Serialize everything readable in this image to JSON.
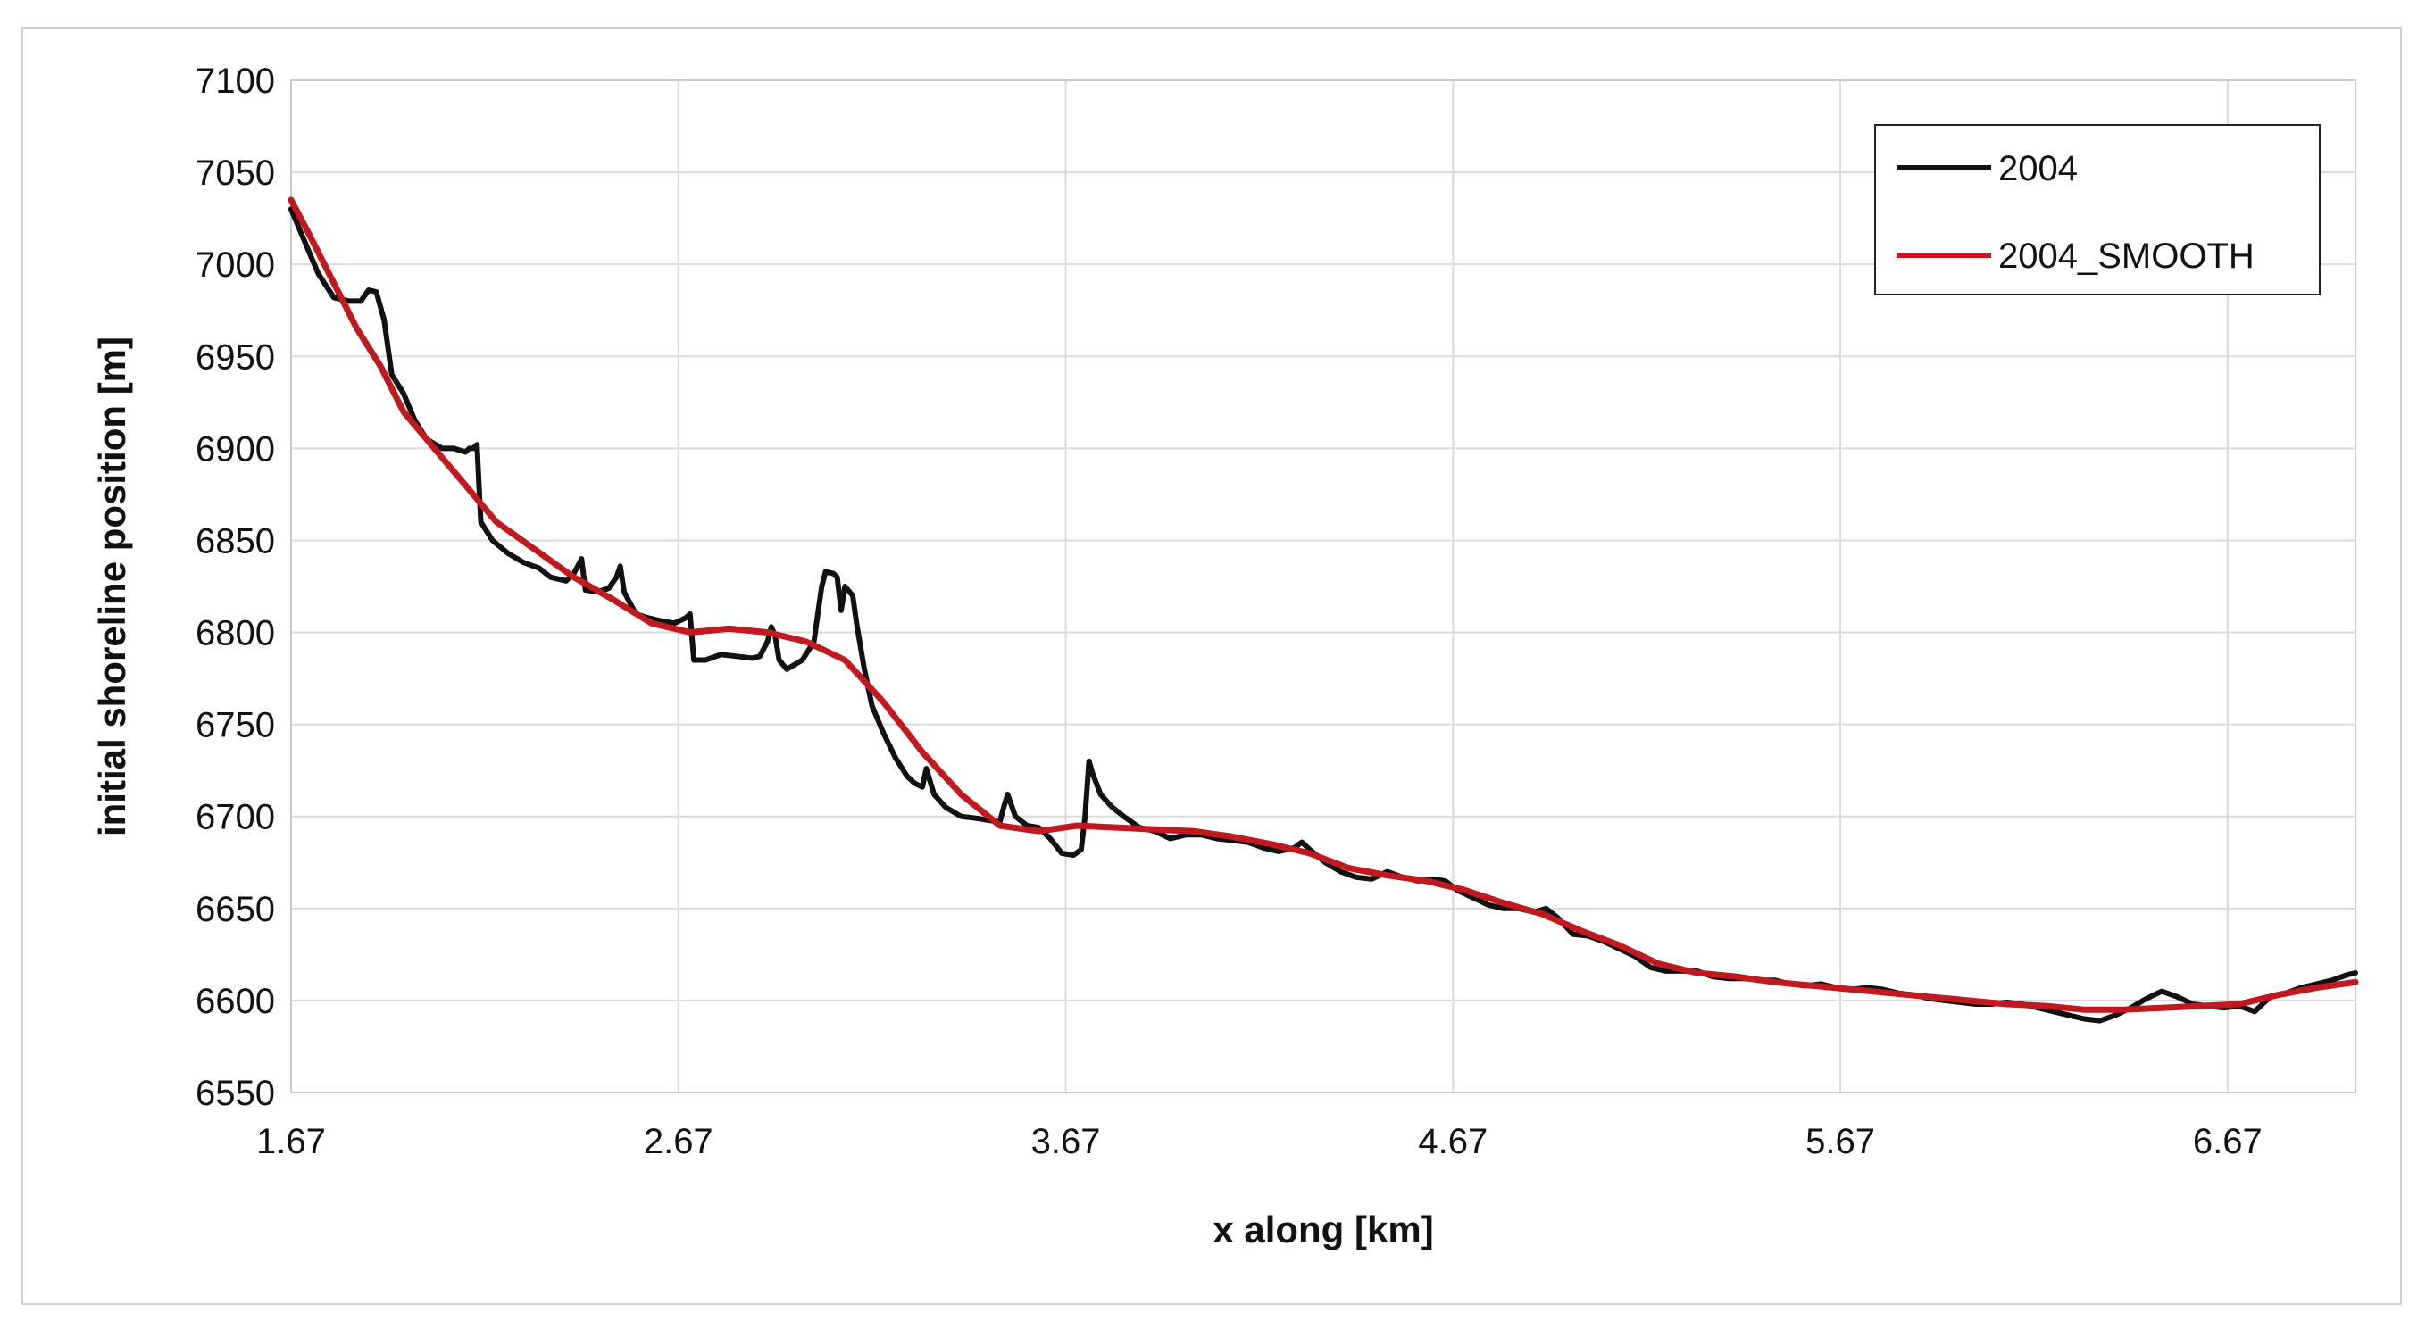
{
  "chart_data": {
    "type": "line",
    "title": "",
    "xlabel": "x along [km]",
    "ylabel": "initial shoreline position  [m]",
    "xlim": [
      1.67,
      7.0
    ],
    "ylim": [
      6550,
      7100
    ],
    "x_ticks": [
      1.67,
      2.67,
      3.67,
      4.67,
      5.67,
      6.67
    ],
    "x_tick_labels": [
      "1.67",
      "2.67",
      "3.67",
      "4.67",
      "5.67",
      "6.67"
    ],
    "y_ticks": [
      6550,
      6600,
      6650,
      6700,
      6750,
      6800,
      6850,
      6900,
      6950,
      7000,
      7050,
      7100
    ],
    "y_tick_labels": [
      "6550",
      "6600",
      "6650",
      "6700",
      "6750",
      "6800",
      "6850",
      "6900",
      "6950",
      "7000",
      "7050",
      "7100"
    ],
    "grid": true,
    "legend_position": "top-right",
    "series": [
      {
        "name": "2004",
        "color": "#111111",
        "points": [
          [
            1.67,
            7030
          ],
          [
            1.7,
            7015
          ],
          [
            1.74,
            6995
          ],
          [
            1.78,
            6982
          ],
          [
            1.82,
            6980
          ],
          [
            1.85,
            6980
          ],
          [
            1.87,
            6986
          ],
          [
            1.89,
            6985
          ],
          [
            1.91,
            6970
          ],
          [
            1.93,
            6940
          ],
          [
            1.96,
            6930
          ],
          [
            1.99,
            6915
          ],
          [
            2.02,
            6905
          ],
          [
            2.06,
            6900
          ],
          [
            2.09,
            6900
          ],
          [
            2.12,
            6898
          ],
          [
            2.13,
            6900
          ],
          [
            2.14,
            6900
          ],
          [
            2.15,
            6902
          ],
          [
            2.16,
            6860
          ],
          [
            2.19,
            6850
          ],
          [
            2.23,
            6843
          ],
          [
            2.27,
            6838
          ],
          [
            2.31,
            6835
          ],
          [
            2.34,
            6830
          ],
          [
            2.38,
            6828
          ],
          [
            2.4,
            6832
          ],
          [
            2.42,
            6840
          ],
          [
            2.43,
            6823
          ],
          [
            2.46,
            6822
          ],
          [
            2.49,
            6824
          ],
          [
            2.51,
            6830
          ],
          [
            2.52,
            6836
          ],
          [
            2.53,
            6822
          ],
          [
            2.56,
            6810
          ],
          [
            2.59,
            6808
          ],
          [
            2.63,
            6806
          ],
          [
            2.66,
            6805
          ],
          [
            2.69,
            6808
          ],
          [
            2.7,
            6810
          ],
          [
            2.71,
            6785
          ],
          [
            2.74,
            6785
          ],
          [
            2.78,
            6788
          ],
          [
            2.82,
            6787
          ],
          [
            2.86,
            6786
          ],
          [
            2.88,
            6787
          ],
          [
            2.9,
            6795
          ],
          [
            2.91,
            6803
          ],
          [
            2.92,
            6798
          ],
          [
            2.93,
            6785
          ],
          [
            2.95,
            6780
          ],
          [
            2.99,
            6785
          ],
          [
            3.02,
            6795
          ],
          [
            3.03,
            6810
          ],
          [
            3.04,
            6825
          ],
          [
            3.05,
            6833
          ],
          [
            3.07,
            6832
          ],
          [
            3.08,
            6830
          ],
          [
            3.09,
            6812
          ],
          [
            3.1,
            6825
          ],
          [
            3.12,
            6820
          ],
          [
            3.13,
            6805
          ],
          [
            3.15,
            6780
          ],
          [
            3.17,
            6760
          ],
          [
            3.2,
            6745
          ],
          [
            3.23,
            6732
          ],
          [
            3.26,
            6722
          ],
          [
            3.28,
            6718
          ],
          [
            3.3,
            6716
          ],
          [
            3.31,
            6726
          ],
          [
            3.33,
            6712
          ],
          [
            3.36,
            6705
          ],
          [
            3.4,
            6700
          ],
          [
            3.44,
            6699
          ],
          [
            3.47,
            6698
          ],
          [
            3.5,
            6697
          ],
          [
            3.51,
            6705
          ],
          [
            3.52,
            6712
          ],
          [
            3.54,
            6700
          ],
          [
            3.57,
            6695
          ],
          [
            3.6,
            6694
          ],
          [
            3.63,
            6688
          ],
          [
            3.66,
            6680
          ],
          [
            3.69,
            6679
          ],
          [
            3.71,
            6682
          ],
          [
            3.72,
            6700
          ],
          [
            3.73,
            6730
          ],
          [
            3.74,
            6723
          ],
          [
            3.76,
            6712
          ],
          [
            3.79,
            6705
          ],
          [
            3.82,
            6700
          ],
          [
            3.86,
            6694
          ],
          [
            3.9,
            6692
          ],
          [
            3.94,
            6688
          ],
          [
            3.98,
            6690
          ],
          [
            4.02,
            6690
          ],
          [
            4.06,
            6688
          ],
          [
            4.1,
            6687
          ],
          [
            4.14,
            6686
          ],
          [
            4.18,
            6683
          ],
          [
            4.22,
            6681
          ],
          [
            4.26,
            6683
          ],
          [
            4.28,
            6686
          ],
          [
            4.3,
            6682
          ],
          [
            4.34,
            6675
          ],
          [
            4.38,
            6670
          ],
          [
            4.42,
            6667
          ],
          [
            4.46,
            6666
          ],
          [
            4.5,
            6670
          ],
          [
            4.54,
            6667
          ],
          [
            4.58,
            6665
          ],
          [
            4.62,
            6666
          ],
          [
            4.65,
            6665
          ],
          [
            4.68,
            6660
          ],
          [
            4.72,
            6656
          ],
          [
            4.76,
            6652
          ],
          [
            4.8,
            6650
          ],
          [
            4.84,
            6650
          ],
          [
            4.88,
            6648
          ],
          [
            4.91,
            6650
          ],
          [
            4.94,
            6645
          ],
          [
            4.98,
            6636
          ],
          [
            5.02,
            6635
          ],
          [
            5.06,
            6632
          ],
          [
            5.1,
            6628
          ],
          [
            5.14,
            6624
          ],
          [
            5.18,
            6618
          ],
          [
            5.22,
            6616
          ],
          [
            5.26,
            6616
          ],
          [
            5.3,
            6616
          ],
          [
            5.34,
            6613
          ],
          [
            5.38,
            6612
          ],
          [
            5.42,
            6612
          ],
          [
            5.46,
            6611
          ],
          [
            5.5,
            6611
          ],
          [
            5.54,
            6609
          ],
          [
            5.58,
            6608
          ],
          [
            5.62,
            6609
          ],
          [
            5.66,
            6607
          ],
          [
            5.7,
            6606
          ],
          [
            5.74,
            6607
          ],
          [
            5.78,
            6606
          ],
          [
            5.82,
            6604
          ],
          [
            5.86,
            6603
          ],
          [
            5.9,
            6601
          ],
          [
            5.94,
            6600
          ],
          [
            5.98,
            6599
          ],
          [
            6.02,
            6598
          ],
          [
            6.06,
            6598
          ],
          [
            6.1,
            6599
          ],
          [
            6.14,
            6598
          ],
          [
            6.18,
            6596
          ],
          [
            6.22,
            6594
          ],
          [
            6.26,
            6592
          ],
          [
            6.3,
            6590
          ],
          [
            6.34,
            6589
          ],
          [
            6.38,
            6592
          ],
          [
            6.42,
            6596
          ],
          [
            6.46,
            6601
          ],
          [
            6.5,
            6605
          ],
          [
            6.54,
            6602
          ],
          [
            6.58,
            6598
          ],
          [
            6.62,
            6597
          ],
          [
            6.66,
            6596
          ],
          [
            6.7,
            6597
          ],
          [
            6.74,
            6594
          ],
          [
            6.76,
            6598
          ],
          [
            6.78,
            6602
          ],
          [
            6.82,
            6604
          ],
          [
            6.86,
            6607
          ],
          [
            6.9,
            6609
          ],
          [
            6.94,
            6611
          ],
          [
            6.98,
            6614
          ],
          [
            7.0,
            6615
          ]
        ]
      },
      {
        "name": "2004_SMOOTH",
        "color": "#c0191f",
        "points": [
          [
            1.67,
            7035
          ],
          [
            1.72,
            7015
          ],
          [
            1.78,
            6990
          ],
          [
            1.84,
            6965
          ],
          [
            1.9,
            6945
          ],
          [
            1.96,
            6920
          ],
          [
            2.02,
            6905
          ],
          [
            2.08,
            6890
          ],
          [
            2.14,
            6875
          ],
          [
            2.2,
            6860
          ],
          [
            2.3,
            6845
          ],
          [
            2.4,
            6830
          ],
          [
            2.5,
            6818
          ],
          [
            2.6,
            6805
          ],
          [
            2.7,
            6800
          ],
          [
            2.8,
            6802
          ],
          [
            2.9,
            6800
          ],
          [
            3.0,
            6795
          ],
          [
            3.1,
            6785
          ],
          [
            3.2,
            6762
          ],
          [
            3.3,
            6735
          ],
          [
            3.4,
            6712
          ],
          [
            3.5,
            6695
          ],
          [
            3.6,
            6692
          ],
          [
            3.7,
            6695
          ],
          [
            3.8,
            6694
          ],
          [
            3.9,
            6693
          ],
          [
            4.0,
            6692
          ],
          [
            4.1,
            6689
          ],
          [
            4.2,
            6685
          ],
          [
            4.3,
            6680
          ],
          [
            4.4,
            6672
          ],
          [
            4.5,
            6668
          ],
          [
            4.6,
            6665
          ],
          [
            4.7,
            6660
          ],
          [
            4.8,
            6653
          ],
          [
            4.9,
            6647
          ],
          [
            5.0,
            6638
          ],
          [
            5.1,
            6630
          ],
          [
            5.2,
            6620
          ],
          [
            5.3,
            6615
          ],
          [
            5.4,
            6613
          ],
          [
            5.5,
            6610
          ],
          [
            5.6,
            6608
          ],
          [
            5.7,
            6606
          ],
          [
            5.8,
            6604
          ],
          [
            5.9,
            6602
          ],
          [
            6.0,
            6600
          ],
          [
            6.1,
            6598
          ],
          [
            6.2,
            6597
          ],
          [
            6.3,
            6595
          ],
          [
            6.4,
            6595
          ],
          [
            6.5,
            6596
          ],
          [
            6.6,
            6597
          ],
          [
            6.7,
            6598
          ],
          [
            6.8,
            6603
          ],
          [
            6.9,
            6607
          ],
          [
            7.0,
            6610
          ]
        ]
      }
    ]
  }
}
